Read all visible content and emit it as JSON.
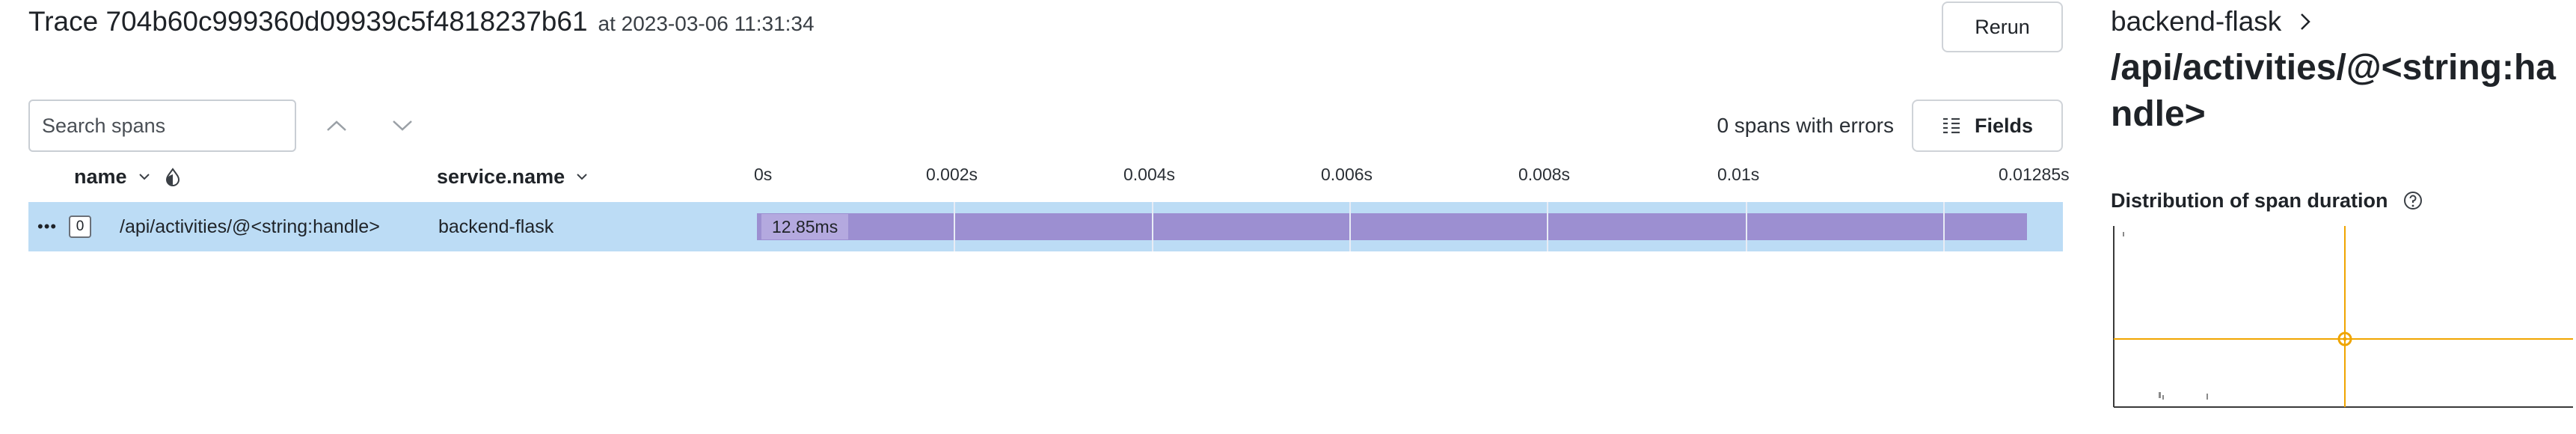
{
  "trace": {
    "title": "Trace 704b60c999360d09939c5f4818237b61",
    "timestamp": "at 2023-03-06 11:31:34",
    "rerun_label": "Rerun"
  },
  "toolbar": {
    "search_placeholder": "Search spans",
    "errors_text": "0 spans with errors",
    "fields_label": "Fields"
  },
  "table": {
    "columns": {
      "name": "name",
      "service": "service.name"
    },
    "ticks": [
      "0s",
      "0.002s",
      "0.004s",
      "0.006s",
      "0.008s",
      "0.01s",
      "0.01285s"
    ],
    "rows": [
      {
        "more_icon": "•••",
        "children_count": "0",
        "name": "/api/activities/@<string:handle>",
        "service": "backend-flask",
        "duration": "12.85ms"
      }
    ]
  },
  "side_panel": {
    "service": "backend-flask",
    "span_name": "/api/activities/@<string:handle>",
    "distribution_title": "Distribution of span duration"
  },
  "colors": {
    "row_selected": "#bcdcf5",
    "span_bar": "#9c8fd1",
    "heatmap_crosshair": "#f0a500",
    "heatmap_axis": "#3a3a3a"
  },
  "icons": [
    "chevron-up-icon",
    "chevron-down-icon",
    "columns-icon",
    "sort-chevron-icon",
    "visibility-icon",
    "chevron-right-icon",
    "help-circle-icon",
    "more-dots-icon"
  ]
}
